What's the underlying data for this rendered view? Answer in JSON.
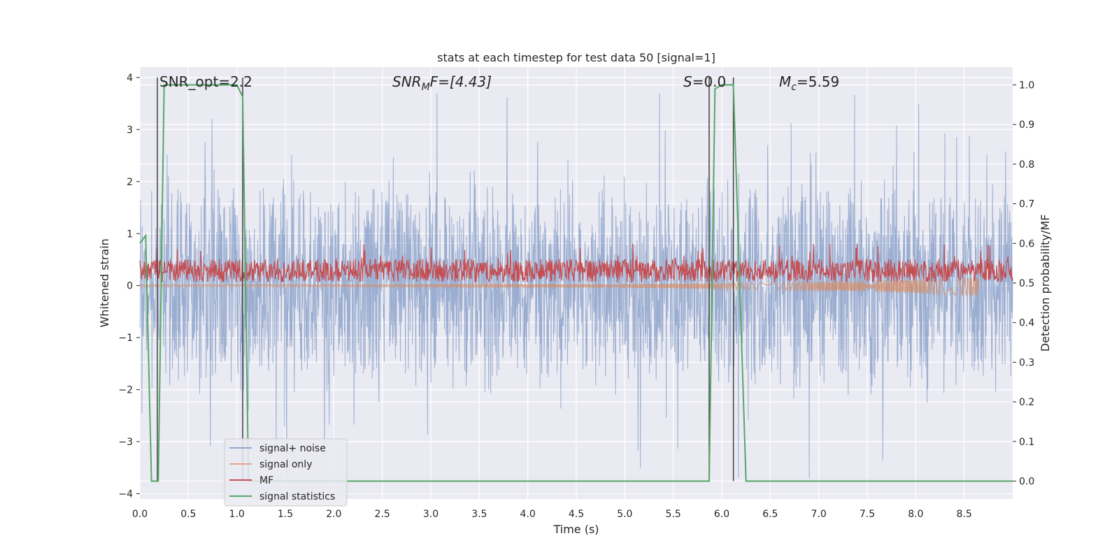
{
  "chart_data": {
    "type": "line",
    "title": "stats at each timestep for test data 50 [signal=1]",
    "xlabel": "Time (s)",
    "ylabel": "Whitened strain",
    "y2label": "Detection probability/MF",
    "xlim": [
      0.0,
      9.0
    ],
    "ylim": [
      -4.1,
      4.2
    ],
    "y2lim": [
      -0.045,
      1.045
    ],
    "x_ticks": [
      "0.0",
      "0.5",
      "1.0",
      "1.5",
      "2.0",
      "2.5",
      "3.0",
      "3.5",
      "4.0",
      "4.5",
      "5.0",
      "5.5",
      "6.0",
      "6.5",
      "7.0",
      "7.5",
      "8.0",
      "8.5"
    ],
    "y_ticks": [
      "4",
      "3",
      "2",
      "1",
      "0",
      "−1",
      "−2",
      "−3",
      "−4"
    ],
    "y2_ticks": [
      "1.0",
      "0.9",
      "0.8",
      "0.7",
      "0.6",
      "0.5",
      "0.4",
      "0.3",
      "0.2",
      "0.1",
      "0.0"
    ],
    "grid": true,
    "legend_position": "lower-left",
    "annotations": {
      "snr_opt": "SNR_opt=2.2",
      "snr_mf_main": "SNR",
      "snr_mf_sub": "M",
      "snr_mf_rest": "F=[4.43]",
      "s_italic": "S",
      "s_rest": "=0.0",
      "mc_main": "M",
      "mc_sub": "c",
      "mc_rest": "=5.59"
    },
    "markers_x": [
      0.18,
      1.06,
      5.87,
      6.12
    ],
    "series": [
      {
        "name": "signal+ noise",
        "color": "#4c72b0",
        "axis": "left",
        "style": "noise",
        "amplitude_range": [
          -3.7,
          3.7
        ]
      },
      {
        "name": "signal only",
        "color": "#dd8452",
        "axis": "left",
        "style": "chirp",
        "x_range": [
          0.0,
          8.65
        ]
      },
      {
        "name": "MF",
        "color": "#c44e52",
        "axis": "left",
        "style": "noise",
        "amplitude_range": [
          0.0,
          1.0
        ]
      },
      {
        "name": "signal statistics",
        "color": "#55a868",
        "axis": "right",
        "x": [
          0.0,
          0.06,
          0.12,
          0.19,
          0.25,
          1.0,
          1.06,
          1.12,
          5.87,
          5.93,
          6.0,
          6.12,
          6.25,
          9.0
        ],
        "y": [
          0.6,
          0.62,
          0.0,
          0.0,
          1.0,
          1.0,
          0.97,
          0.0,
          0.0,
          0.99,
          1.0,
          1.0,
          0.0,
          0.0
        ]
      }
    ]
  },
  "colors": {
    "background": "#eaeaf2",
    "grid": "#ffffff",
    "noise": "#4c72b0",
    "signal": "#dd8452",
    "mf": "#c44e52",
    "stats": "#55a868",
    "marker": "#404040"
  }
}
